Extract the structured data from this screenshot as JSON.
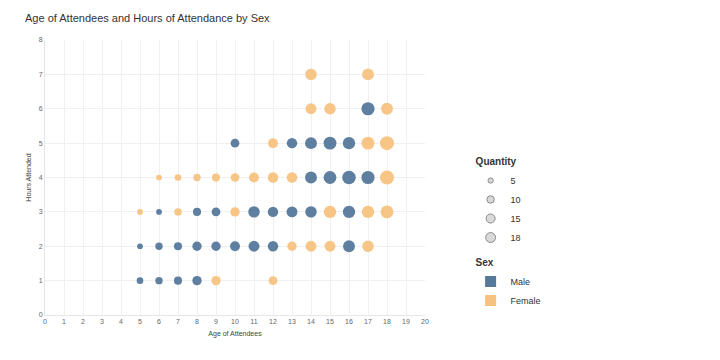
{
  "chart_data": {
    "type": "scatter",
    "title": "Age of Attendees and Hours of Attendance by Sex",
    "x_label": "Age of Attendees",
    "y_label": "Hours Attended",
    "xlim": [
      0,
      20
    ],
    "xticks": [
      0,
      1,
      2,
      3,
      4,
      5,
      6,
      7,
      8,
      9,
      10,
      11,
      12,
      13,
      14,
      15,
      16,
      17,
      18,
      19,
      20
    ],
    "ylim": [
      0,
      8
    ],
    "yticks": [
      0,
      1,
      2,
      3,
      4,
      5,
      6,
      7,
      8
    ],
    "grid": true,
    "legend": "right",
    "legend_title": "Sex",
    "size_legend": {
      "title": "Quantity",
      "values": [
        5,
        10,
        15,
        18
      ]
    },
    "series": [
      {
        "name": "Male",
        "color": "#56789b",
        "marker": "circle",
        "x": [
          5,
          6,
          7,
          8,
          5,
          6,
          7,
          8,
          9,
          10,
          11,
          12,
          16,
          6,
          8,
          9,
          11,
          12,
          13,
          14,
          16,
          14,
          15,
          16,
          17,
          10,
          13,
          14,
          15,
          16,
          17
        ],
        "y": [
          1,
          1,
          1,
          1,
          2,
          2,
          2,
          2,
          2,
          2,
          2,
          2,
          2,
          3,
          3,
          3,
          3,
          3,
          3,
          3,
          3,
          4,
          4,
          4,
          4,
          5,
          5,
          5,
          5,
          5,
          6
        ],
        "sizes": [
          4,
          5,
          6,
          8,
          3,
          5,
          6,
          8,
          8,
          9,
          11,
          10,
          13,
          3,
          6,
          7,
          12,
          10,
          11,
          12,
          14,
          13,
          15,
          17,
          16,
          7,
          10,
          13,
          15,
          14,
          16
        ]
      },
      {
        "name": "Female",
        "color": "#f7c27f",
        "marker": "circle",
        "x": [
          9,
          12,
          13,
          14,
          15,
          17,
          5,
          7,
          10,
          15,
          17,
          18,
          6,
          7,
          8,
          9,
          10,
          11,
          12,
          13,
          18,
          12,
          17,
          18,
          14,
          15,
          18,
          14,
          17
        ],
        "y": [
          1,
          1,
          2,
          2,
          2,
          2,
          3,
          3,
          3,
          3,
          3,
          3,
          4,
          4,
          4,
          4,
          4,
          4,
          4,
          4,
          4,
          5,
          5,
          5,
          6,
          6,
          6,
          7,
          7
        ],
        "sizes": [
          8,
          7,
          8,
          11,
          11,
          12,
          3,
          5,
          8,
          14,
          14,
          15,
          3,
          4,
          5,
          6,
          7,
          9,
          10,
          10,
          18,
          9,
          15,
          18,
          11,
          12,
          13,
          12,
          13
        ]
      }
    ]
  }
}
